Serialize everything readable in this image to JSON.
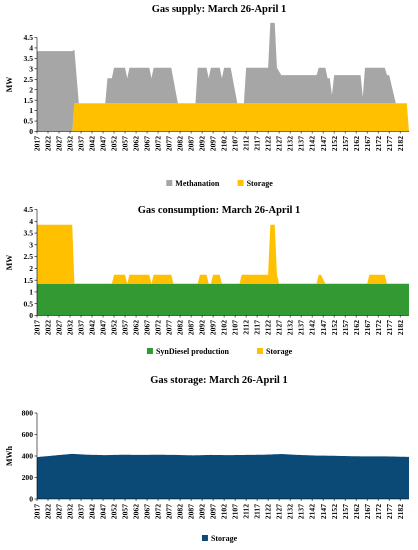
{
  "chart_data": [
    {
      "type": "area",
      "stacked": true,
      "title": "Gas supply:  March 26-April  1",
      "ylabel": "MW",
      "xlabel": "",
      "ylim": [
        0,
        4.5
      ],
      "yticks": [
        "0",
        "0.5",
        "1",
        "1.5",
        "2",
        "2.5",
        "3",
        "3.5",
        "4",
        "4.5"
      ],
      "x_start": 2017,
      "x_end": 2186,
      "x_tick_labels": [
        "2017",
        "2022",
        "2027",
        "2032",
        "2037",
        "2042",
        "2047",
        "2052",
        "2057",
        "2062",
        "2067",
        "2072",
        "2077",
        "2082",
        "2087",
        "2092",
        "2097",
        "2102",
        "2107",
        "2112",
        "2117",
        "2122",
        "2127",
        "2132",
        "2137",
        "2142",
        "2147",
        "2152",
        "2157",
        "2162",
        "2167",
        "2172",
        "2177",
        "2182"
      ],
      "grid": false,
      "legend_position": "bottom",
      "series": [
        {
          "name": "Storage",
          "color": "#FFC000",
          "points": [
            [
              2017,
              0
            ],
            [
              2033,
              0
            ],
            [
              2034,
              1.35
            ],
            [
              2185,
              1.35
            ],
            [
              2186,
              0
            ]
          ]
        },
        {
          "name": "Methanation",
          "color": "#A6A6A6",
          "points": [
            [
              2017,
              3.85
            ],
            [
              2033,
              3.85
            ],
            [
              2036,
              0
            ],
            [
              2048,
              0
            ],
            [
              2049,
              1.2
            ],
            [
              2051,
              1.2
            ],
            [
              2052,
              1.7
            ],
            [
              2057,
              1.7
            ],
            [
              2058,
              1.2
            ],
            [
              2059,
              1.7
            ],
            [
              2068,
              1.7
            ],
            [
              2069,
              1.2
            ],
            [
              2070,
              1.7
            ],
            [
              2078,
              1.7
            ],
            [
              2081,
              0
            ],
            [
              2089,
              0
            ],
            [
              2090,
              1.7
            ],
            [
              2094,
              1.7
            ],
            [
              2095,
              1.2
            ],
            [
              2096,
              1.7
            ],
            [
              2100,
              1.7
            ],
            [
              2101,
              1.2
            ],
            [
              2102,
              1.7
            ],
            [
              2105,
              1.7
            ],
            [
              2108,
              0
            ],
            [
              2111,
              0
            ],
            [
              2112,
              1.7
            ],
            [
              2122,
              1.7
            ],
            [
              2123,
              3.85
            ],
            [
              2125,
              3.85
            ],
            [
              2126,
              1.7
            ],
            [
              2128,
              1.35
            ],
            [
              2144,
              1.35
            ],
            [
              2145,
              1.7
            ],
            [
              2148,
              1.7
            ],
            [
              2149,
              1.2
            ],
            [
              2150,
              1.2
            ],
            [
              2151,
              0.4
            ],
            [
              2152,
              1.35
            ],
            [
              2164,
              1.35
            ],
            [
              2165,
              0.3
            ],
            [
              2166,
              1.7
            ],
            [
              2175,
              1.7
            ],
            [
              2176,
              1.35
            ],
            [
              2177,
              1.35
            ],
            [
              2180,
              0
            ],
            [
              2185,
              0
            ],
            [
              2186,
              0
            ]
          ]
        }
      ],
      "legend": [
        {
          "name": "Methanation",
          "color": "#A6A6A6"
        },
        {
          "name": "Storage",
          "color": "#FFC000"
        }
      ]
    },
    {
      "type": "area",
      "stacked": true,
      "title": "Gas consumption:  March 26-April  1",
      "ylabel": "MW",
      "xlabel": "",
      "ylim": [
        0,
        4.5
      ],
      "yticks": [
        "0",
        "0.5",
        "1",
        "1.5",
        "2",
        "2.5",
        "3",
        "3.5",
        "4",
        "4.5"
      ],
      "x_start": 2017,
      "x_end": 2186,
      "x_tick_labels": [
        "2017",
        "2022",
        "2027",
        "2032",
        "2037",
        "2042",
        "2047",
        "2052",
        "2057",
        "2062",
        "2067",
        "2072",
        "2077",
        "2082",
        "2087",
        "2092",
        "2097",
        "2102",
        "2107",
        "2112",
        "2117",
        "2122",
        "2127",
        "2132",
        "2137",
        "2142",
        "2147",
        "2152",
        "2157",
        "2162",
        "2167",
        "2172",
        "2177",
        "2182"
      ],
      "grid": false,
      "legend_position": "bottom",
      "series": [
        {
          "name": "SynDiesel production",
          "color": "#339933",
          "points": [
            [
              2017,
              1.35
            ],
            [
              2186,
              1.35
            ]
          ]
        },
        {
          "name": "Storage",
          "color": "#FFC000",
          "points": [
            [
              2017,
              2.5
            ],
            [
              2033,
              2.5
            ],
            [
              2034,
              0
            ],
            [
              2051,
              0
            ],
            [
              2052,
              0.38
            ],
            [
              2057,
              0.38
            ],
            [
              2058,
              0
            ],
            [
              2059,
              0.38
            ],
            [
              2068,
              0.38
            ],
            [
              2069,
              0
            ],
            [
              2070,
              0.38
            ],
            [
              2078,
              0.38
            ],
            [
              2079,
              0
            ],
            [
              2090,
              0
            ],
            [
              2091,
              0.38
            ],
            [
              2094,
              0.38
            ],
            [
              2095,
              0
            ],
            [
              2096,
              0
            ],
            [
              2097,
              0.38
            ],
            [
              2100,
              0.38
            ],
            [
              2101,
              0
            ],
            [
              2109,
              0
            ],
            [
              2110,
              0.38
            ],
            [
              2122,
              0.38
            ],
            [
              2123,
              2.5
            ],
            [
              2125,
              2.5
            ],
            [
              2126,
              0.38
            ],
            [
              2127,
              0
            ],
            [
              2144,
              0
            ],
            [
              2145,
              0.38
            ],
            [
              2146,
              0.38
            ],
            [
              2148,
              0
            ],
            [
              2167,
              0
            ],
            [
              2168,
              0.38
            ],
            [
              2175,
              0.38
            ],
            [
              2176,
              0
            ],
            [
              2186,
              0
            ]
          ]
        }
      ],
      "legend": [
        {
          "name": "SynDiesel production",
          "color": "#339933"
        },
        {
          "name": "Storage",
          "color": "#FFC000"
        }
      ]
    },
    {
      "type": "area",
      "stacked": false,
      "title": "Gas storage: March 26-April  1",
      "ylabel": "MWh",
      "xlabel": "",
      "ylim": [
        0,
        800
      ],
      "yticks": [
        "0",
        "200",
        "400",
        "600",
        "800"
      ],
      "x_start": 2017,
      "x_end": 2186,
      "x_tick_labels": [
        "2017",
        "2022",
        "2027",
        "2032",
        "2037",
        "2042",
        "2047",
        "2052",
        "2057",
        "2062",
        "2067",
        "2072",
        "2077",
        "2082",
        "2087",
        "2092",
        "2097",
        "2102",
        "2107",
        "2112",
        "2117",
        "2122",
        "2127",
        "2132",
        "2137",
        "2142",
        "2147",
        "2152",
        "2157",
        "2162",
        "2167",
        "2172",
        "2177",
        "2182"
      ],
      "grid": false,
      "legend_position": "bottom",
      "series": [
        {
          "name": "Storage",
          "color": "#0B4A77",
          "points": [
            [
              2017,
              390
            ],
            [
              2025,
              405
            ],
            [
              2033,
              420
            ],
            [
              2040,
              412
            ],
            [
              2048,
              408
            ],
            [
              2056,
              412
            ],
            [
              2064,
              410
            ],
            [
              2072,
              412
            ],
            [
              2080,
              410
            ],
            [
              2088,
              406
            ],
            [
              2096,
              410
            ],
            [
              2104,
              408
            ],
            [
              2112,
              410
            ],
            [
              2120,
              412
            ],
            [
              2128,
              418
            ],
            [
              2136,
              410
            ],
            [
              2144,
              404
            ],
            [
              2152,
              402
            ],
            [
              2160,
              398
            ],
            [
              2168,
              396
            ],
            [
              2176,
              396
            ],
            [
              2186,
              392
            ]
          ]
        }
      ],
      "legend": [
        {
          "name": "Storage",
          "color": "#0B4A77"
        }
      ]
    }
  ]
}
